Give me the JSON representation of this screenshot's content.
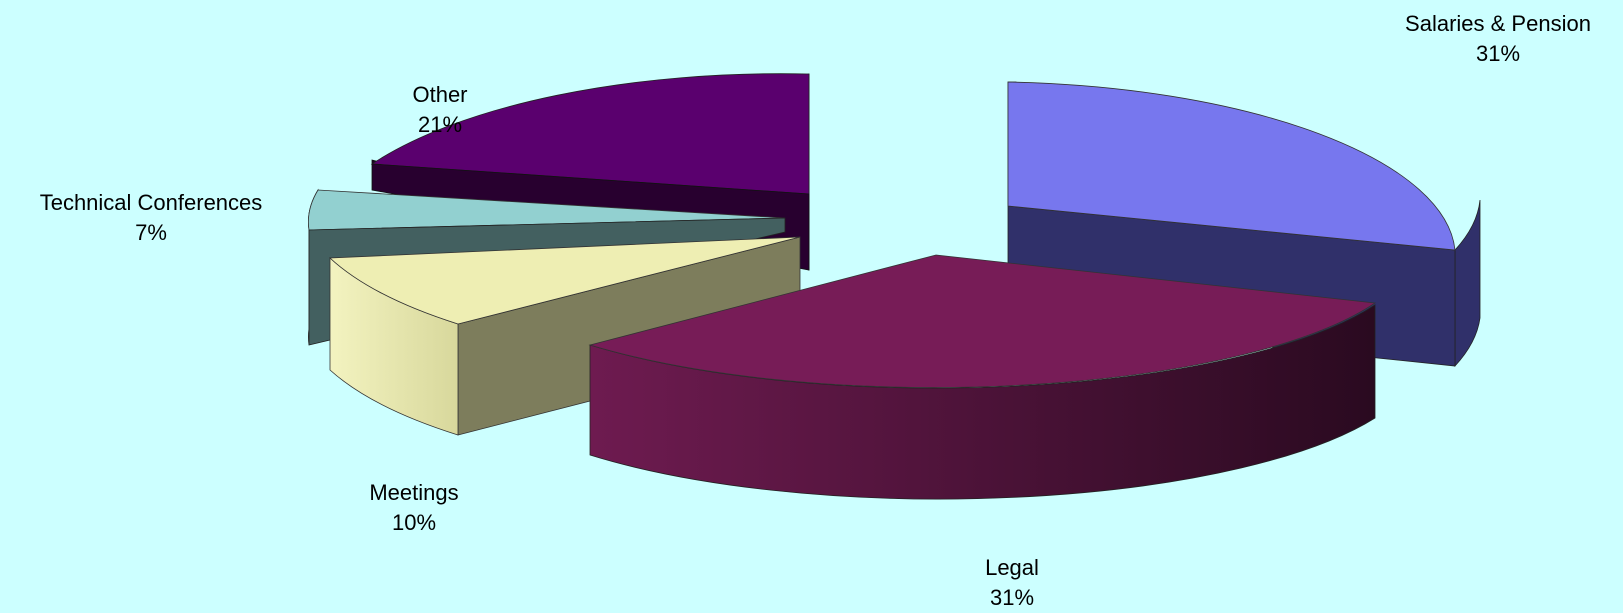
{
  "chart_data": {
    "type": "pie",
    "variant": "3d-exploded",
    "slices": [
      {
        "label": "Salaries & Pension",
        "value": 31,
        "value_label": "31%",
        "color": "#7777ee"
      },
      {
        "label": "Legal",
        "value": 31,
        "value_label": "31%",
        "color": "#771c57"
      },
      {
        "label": "Meetings",
        "value": 10,
        "value_label": "10%",
        "color": "#eeeeb3"
      },
      {
        "label": "Technical Conferences",
        "value": 7,
        "value_label": "7%",
        "color": "#92d0d0"
      },
      {
        "label": "Other",
        "value": 21,
        "value_label": "21%",
        "color": "#5a006e"
      }
    ],
    "background": "#ccffff"
  }
}
